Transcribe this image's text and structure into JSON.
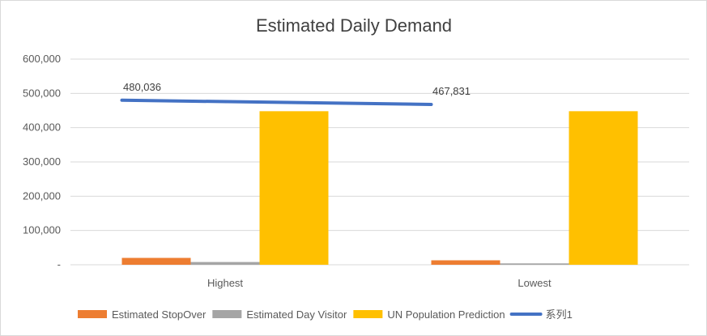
{
  "chart_data": {
    "type": "bar",
    "title": "Estimated Daily Demand",
    "xlabel": "",
    "ylabel": "",
    "ylim": [
      0,
      600000
    ],
    "yticks": [
      {
        "value": 0,
        "label": "-"
      },
      {
        "value": 100000,
        "label": "100,000"
      },
      {
        "value": 200000,
        "label": "200,000"
      },
      {
        "value": 300000,
        "label": "300,000"
      },
      {
        "value": 400000,
        "label": "400,000"
      },
      {
        "value": 500000,
        "label": "500,000"
      },
      {
        "value": 600000,
        "label": "600,000"
      }
    ],
    "grid": true,
    "legend_position": "bottom",
    "categories": [
      "Highest",
      "Lowest"
    ],
    "series": [
      {
        "name": "Estimated StopOver",
        "kind": "bar",
        "color": "#ED7D31",
        "values": [
          20000,
          13000
        ]
      },
      {
        "name": "Estimated Day Visitor",
        "kind": "bar",
        "color": "#A5A5A5",
        "values": [
          8000,
          4000
        ]
      },
      {
        "name": "UN Population Prediction",
        "kind": "bar",
        "color": "#FFC000",
        "values": [
          448000,
          448000
        ]
      },
      {
        "name": "系列1",
        "kind": "line",
        "color": "#4472C4",
        "values": [
          480036,
          467831
        ],
        "data_labels": [
          "480,036",
          "467,831"
        ]
      }
    ]
  }
}
